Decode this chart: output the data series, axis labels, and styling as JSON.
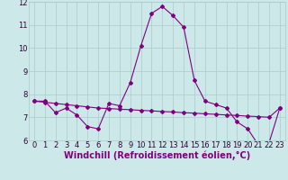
{
  "xlabel": "Windchill (Refroidissement éolien,°C)",
  "ylabel": "",
  "background_color": "#cce8e8",
  "line_color": "#800080",
  "ylim": [
    6,
    12
  ],
  "xlim": [
    -0.5,
    23.5
  ],
  "yticks": [
    6,
    7,
    8,
    9,
    10,
    11,
    12
  ],
  "xticks": [
    0,
    1,
    2,
    3,
    4,
    5,
    6,
    7,
    8,
    9,
    10,
    11,
    12,
    13,
    14,
    15,
    16,
    17,
    18,
    19,
    20,
    21,
    22,
    23
  ],
  "series1_x": [
    0,
    1,
    2,
    3,
    4,
    5,
    6,
    7,
    8,
    9,
    10,
    11,
    12,
    13,
    14,
    15,
    16,
    17,
    18,
    19,
    20,
    21,
    22,
    23
  ],
  "series1_y": [
    7.7,
    7.7,
    7.2,
    7.4,
    7.1,
    6.6,
    6.5,
    7.6,
    7.5,
    8.5,
    10.1,
    11.5,
    11.8,
    11.4,
    10.9,
    8.6,
    7.7,
    7.55,
    7.4,
    6.8,
    6.5,
    5.8,
    5.9,
    7.4
  ],
  "series2_x": [
    0,
    1,
    2,
    3,
    4,
    5,
    6,
    7,
    8,
    9,
    10,
    11,
    12,
    13,
    14,
    15,
    16,
    17,
    18,
    19,
    20,
    21,
    22,
    23
  ],
  "series2_y": [
    7.7,
    7.65,
    7.6,
    7.55,
    7.5,
    7.45,
    7.4,
    7.38,
    7.35,
    7.33,
    7.3,
    7.28,
    7.25,
    7.23,
    7.2,
    7.18,
    7.15,
    7.13,
    7.1,
    7.08,
    7.05,
    7.03,
    7.0,
    7.4
  ],
  "grid_color": "#aacccc",
  "tick_fontsize": 6,
  "xlabel_fontsize": 7,
  "marker": "D",
  "markersize": 2.0,
  "linewidth": 0.8
}
